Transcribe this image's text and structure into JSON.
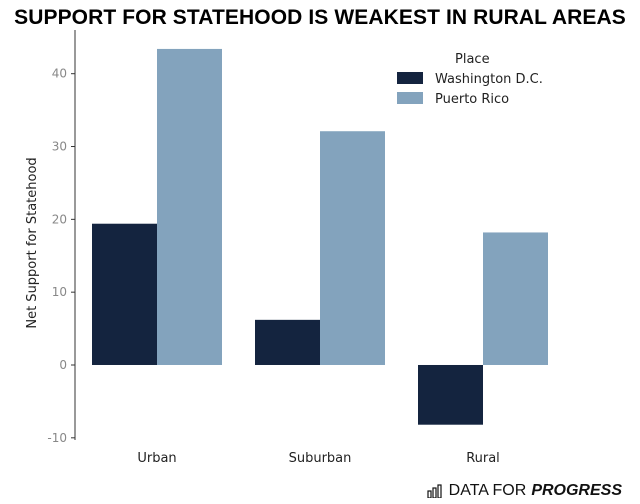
{
  "title": "SUPPORT FOR STATEHOOD IS WEAKEST IN RURAL AREAS",
  "brand": {
    "prefix": "DATA FOR",
    "strong": "PROGRESS"
  },
  "icons": {
    "brand": "bar-chart-icon"
  },
  "colors": {
    "washington_dc": "#14243f",
    "puerto_rico": "#83a3bd",
    "axis": "#333333",
    "tick_text": "#888888"
  },
  "chart_data": {
    "type": "bar",
    "title": "SUPPORT FOR STATEHOOD IS WEAKEST IN RURAL AREAS",
    "xlabel": "",
    "ylabel": "Net Support for Statehood",
    "categories": [
      "Urban",
      "Suburban",
      "Rural"
    ],
    "series": [
      {
        "name": "Washington D.C.",
        "values": [
          19.4,
          6.2,
          -8.2
        ]
      },
      {
        "name": "Puerto Rico",
        "values": [
          43.4,
          32.1,
          18.2
        ]
      }
    ],
    "yticks": [
      -10,
      0,
      10,
      20,
      30,
      40
    ],
    "ylim": [
      -10.3,
      46
    ],
    "legend": {
      "title": "Place",
      "placement": "top-right"
    },
    "grid": false
  }
}
